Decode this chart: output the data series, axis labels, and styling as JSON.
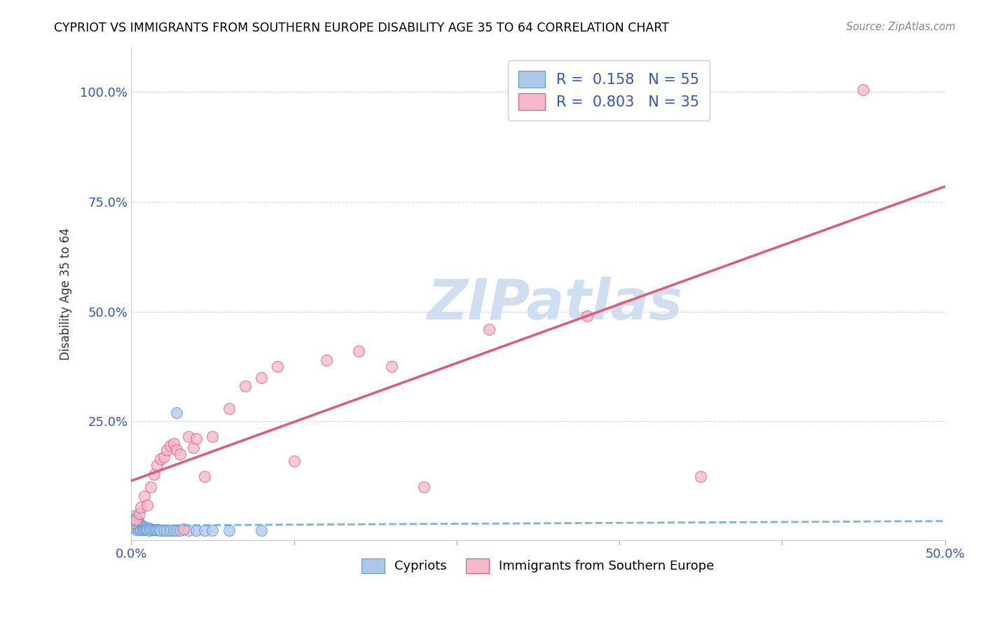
{
  "title": "CYPRIOT VS IMMIGRANTS FROM SOUTHERN EUROPE DISABILITY AGE 35 TO 64 CORRELATION CHART",
  "source": "Source: ZipAtlas.com",
  "ylabel": "Disability Age 35 to 64",
  "xlim": [
    0.0,
    0.5
  ],
  "ylim": [
    -0.02,
    1.1
  ],
  "xticks": [
    0.0,
    0.1,
    0.2,
    0.3,
    0.4,
    0.5
  ],
  "yticks": [
    0.25,
    0.5,
    0.75,
    1.0
  ],
  "ytick_labels": [
    "25.0%",
    "50.0%",
    "75.0%",
    "100.0%"
  ],
  "xtick_labels": [
    "0.0%",
    "",
    "",
    "",
    "",
    "50.0%"
  ],
  "blue_R": 0.158,
  "blue_N": 55,
  "pink_R": 0.803,
  "pink_N": 35,
  "blue_color": "#aec6e8",
  "blue_edge_color": "#5b9bd5",
  "pink_color": "#f4b8c8",
  "pink_edge_color": "#e05a7a",
  "blue_line_color": "#6aaed6",
  "pink_line_color": "#e05a7a",
  "watermark_color": "#d0dff0",
  "legend_label_blue": "Cypriots",
  "legend_label_pink": "Immigrants from Southern Europe",
  "blue_x": [
    0.001,
    0.001,
    0.001,
    0.002,
    0.002,
    0.002,
    0.002,
    0.002,
    0.003,
    0.003,
    0.003,
    0.003,
    0.003,
    0.004,
    0.004,
    0.004,
    0.004,
    0.005,
    0.005,
    0.005,
    0.005,
    0.006,
    0.006,
    0.006,
    0.007,
    0.007,
    0.007,
    0.008,
    0.008,
    0.009,
    0.009,
    0.01,
    0.01,
    0.011,
    0.011,
    0.012,
    0.013,
    0.014,
    0.015,
    0.016,
    0.017,
    0.018,
    0.02,
    0.022,
    0.024,
    0.026,
    0.028,
    0.03,
    0.035,
    0.04,
    0.045,
    0.05,
    0.06,
    0.08,
    0.028
  ],
  "blue_y": [
    0.02,
    0.015,
    0.01,
    0.035,
    0.025,
    0.018,
    0.012,
    0.008,
    0.03,
    0.02,
    0.014,
    0.008,
    0.004,
    0.022,
    0.015,
    0.01,
    0.005,
    0.018,
    0.012,
    0.007,
    0.003,
    0.015,
    0.009,
    0.004,
    0.012,
    0.007,
    0.003,
    0.01,
    0.005,
    0.008,
    0.003,
    0.007,
    0.003,
    0.006,
    0.002,
    0.005,
    0.004,
    0.004,
    0.003,
    0.003,
    0.003,
    0.002,
    0.002,
    0.002,
    0.002,
    0.002,
    0.002,
    0.002,
    0.002,
    0.002,
    0.002,
    0.002,
    0.002,
    0.002,
    0.27
  ],
  "pink_x": [
    0.001,
    0.003,
    0.005,
    0.006,
    0.008,
    0.01,
    0.012,
    0.014,
    0.016,
    0.018,
    0.02,
    0.022,
    0.024,
    0.026,
    0.028,
    0.03,
    0.032,
    0.035,
    0.038,
    0.04,
    0.045,
    0.05,
    0.06,
    0.07,
    0.08,
    0.09,
    0.1,
    0.12,
    0.14,
    0.16,
    0.18,
    0.22,
    0.28,
    0.35,
    0.45
  ],
  "pink_y": [
    0.02,
    0.025,
    0.04,
    0.055,
    0.08,
    0.06,
    0.1,
    0.13,
    0.15,
    0.165,
    0.17,
    0.185,
    0.195,
    0.2,
    0.185,
    0.175,
    0.005,
    0.215,
    0.19,
    0.21,
    0.125,
    0.215,
    0.28,
    0.33,
    0.35,
    0.375,
    0.16,
    0.39,
    0.41,
    0.375,
    0.1,
    0.46,
    0.49,
    0.125,
    1.005
  ]
}
